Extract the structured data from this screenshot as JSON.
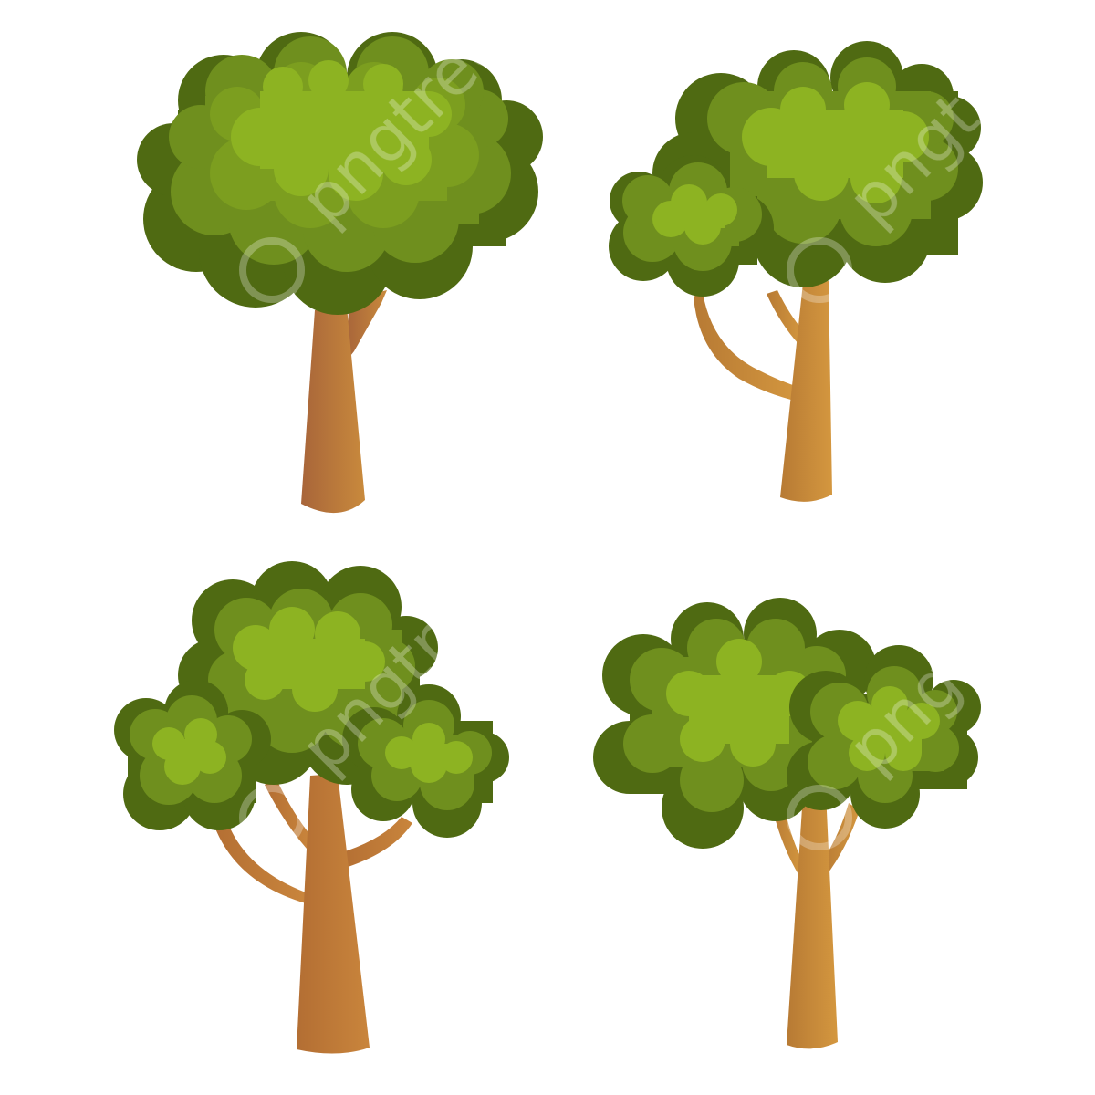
{
  "scene": {
    "background": "#ffffff",
    "subject": "four cartoon trees in a 2x2 grid",
    "colors": {
      "leaf_dark": "#4f6a12",
      "leaf_mid": "#6f8f1e",
      "leaf_light": "#8db322",
      "leaf_highlight": "#9bbd2c",
      "trunk_dark": "#a8653a",
      "trunk_light": "#c98a3c"
    },
    "trees": [
      {
        "name": "tree-top-left",
        "variant": "single-crown"
      },
      {
        "name": "tree-top-right",
        "variant": "two-crowns"
      },
      {
        "name": "tree-bottom-left",
        "variant": "three-crowns"
      },
      {
        "name": "tree-bottom-right",
        "variant": "two-crowns-wide"
      }
    ]
  },
  "watermark": {
    "text": "pngtree",
    "icon": "pngtree-logo-icon"
  }
}
